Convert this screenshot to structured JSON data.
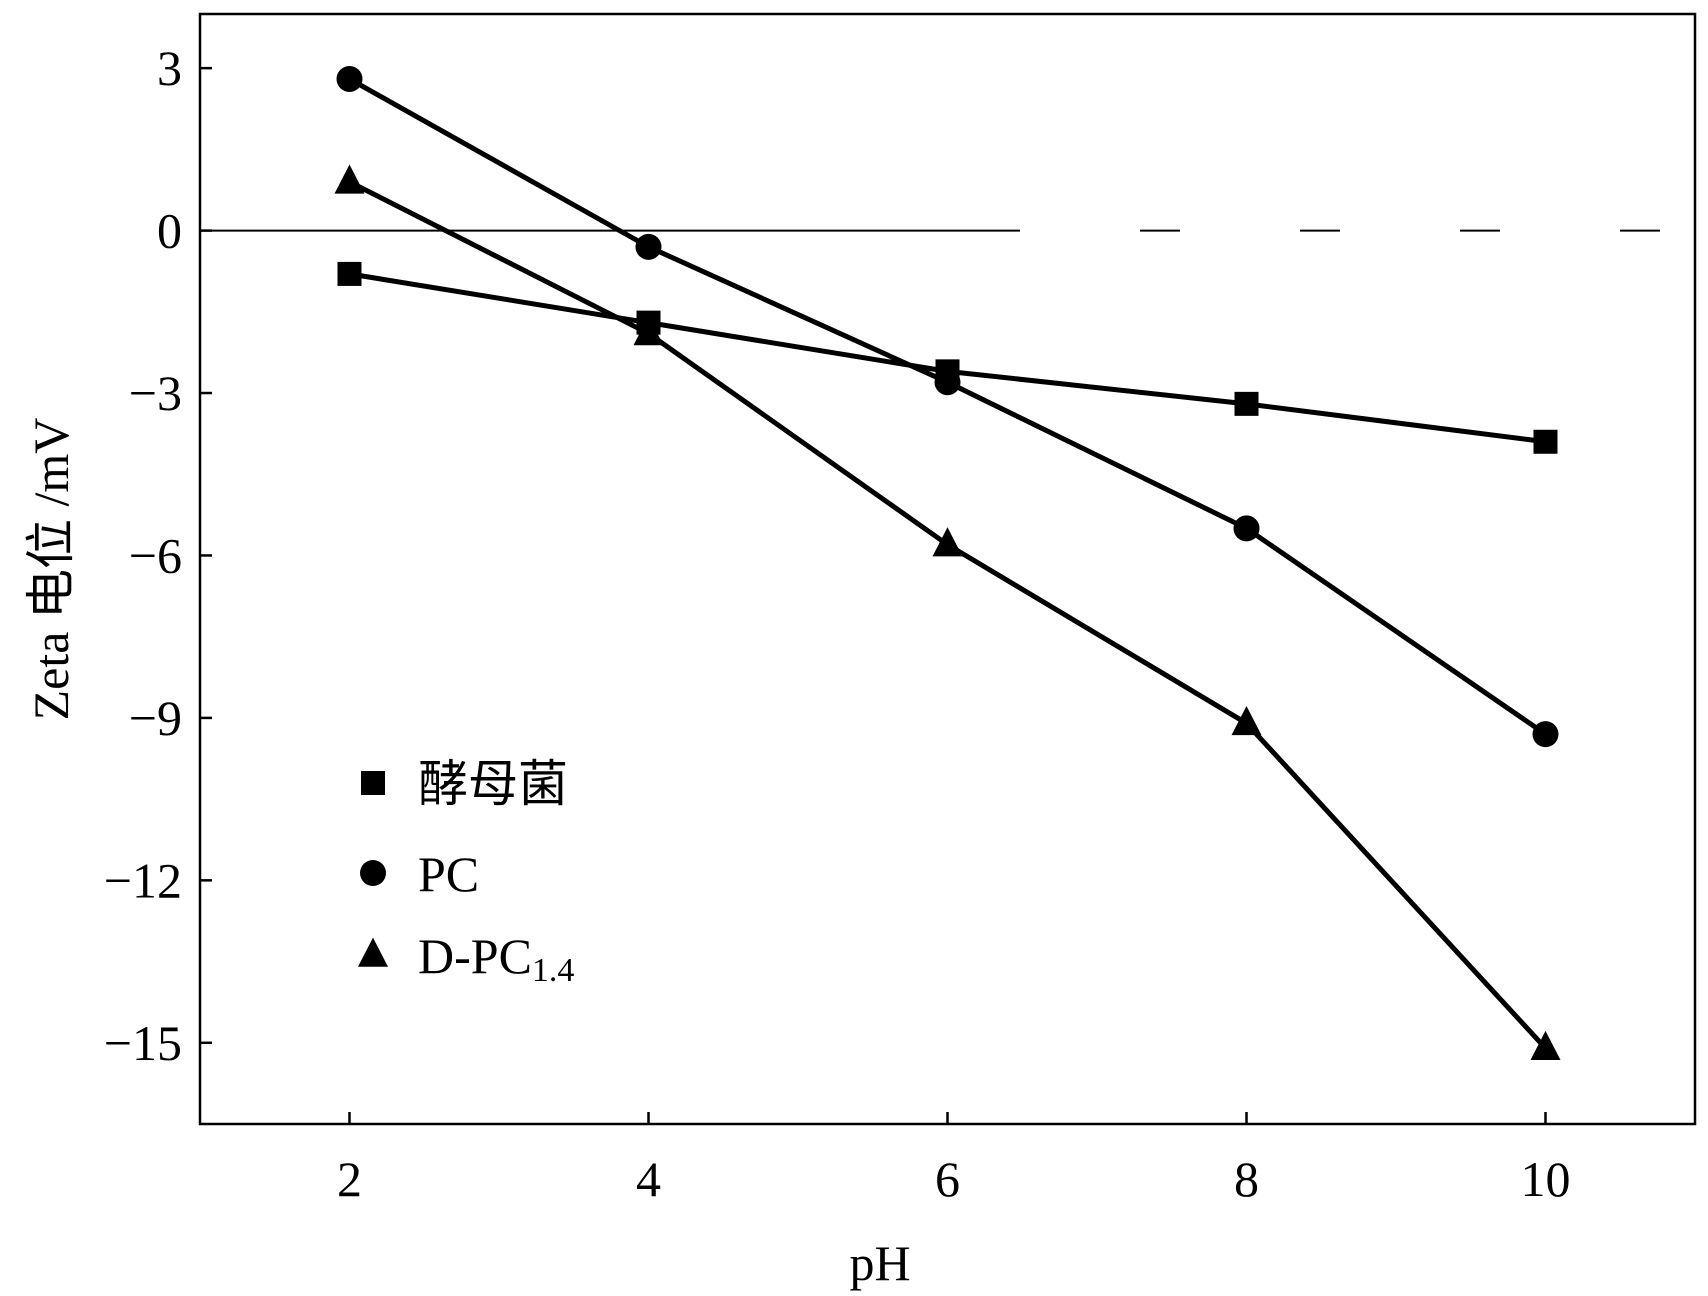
{
  "chart_data": {
    "type": "line",
    "title": "",
    "xlabel": "pH",
    "ylabel": "Zeta 电位 /mV",
    "x": [
      2,
      4,
      6,
      8,
      10
    ],
    "xlim": [
      1,
      11
    ],
    "ylim": [
      -16.5,
      4
    ],
    "xticks": [
      2,
      4,
      6,
      8,
      10
    ],
    "xtick_labels": [
      "2",
      "4",
      "6",
      "8",
      "10"
    ],
    "yticks": [
      3,
      0,
      -3,
      -6,
      -9,
      -12,
      -15
    ],
    "ytick_labels": [
      "3",
      "0",
      "−3",
      "−6",
      "−9",
      "−12",
      "−15"
    ],
    "reference_line": {
      "y": 0,
      "style": "dash-dot"
    },
    "grid": false,
    "legend_position": "lower-left",
    "series": [
      {
        "name": "酵母菌",
        "marker": "square",
        "values": [
          -0.8,
          -1.7,
          -2.6,
          -3.2,
          -3.9
        ]
      },
      {
        "name": "PC",
        "marker": "circle",
        "values": [
          2.8,
          -0.3,
          -2.8,
          -5.5,
          -9.3
        ]
      },
      {
        "name": "D-PC",
        "name_subscript": "1.4",
        "marker": "triangle",
        "values": [
          0.9,
          -1.9,
          -5.8,
          -9.1,
          -15.1
        ]
      }
    ]
  }
}
